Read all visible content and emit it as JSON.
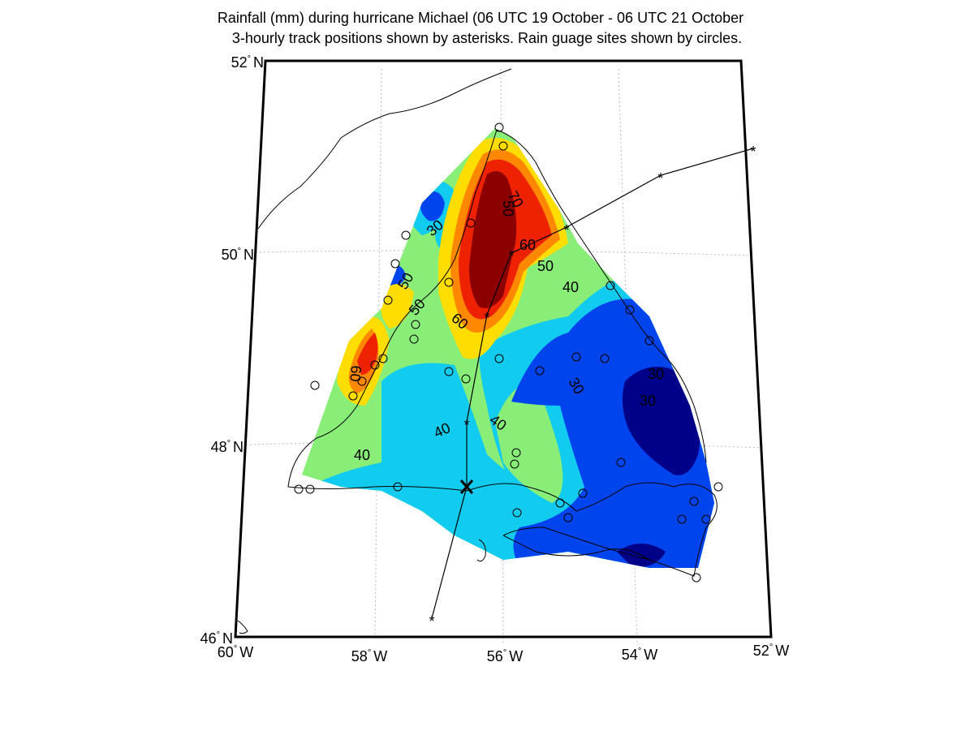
{
  "title": {
    "line1": "Rainfall (mm) during hurricane Michael (06 UTC 19 October - 06 UTC 21 October",
    "line2": "3-hourly track positions shown by asterisks. Rain guage sites shown by circles."
  },
  "axes": {
    "lat_labels": [
      "52",
      "50",
      "48",
      "46"
    ],
    "lon_labels": [
      "60",
      "58",
      "56",
      "54",
      "52"
    ],
    "lat_suffix": "N",
    "lon_suffix": "W",
    "degree_symbol": "°"
  },
  "contour_labels": [
    "70",
    "60",
    "50",
    "40",
    "30",
    "30",
    "50",
    "50",
    "60",
    "60",
    "50",
    "40",
    "40",
    "40",
    "30",
    "30"
  ],
  "colors": {
    "darkred": "#8c0000",
    "red": "#ee2200",
    "orange": "#ff8800",
    "yellow": "#ffdd00",
    "green": "#88ee77",
    "cyan": "#11ccee",
    "blue": "#0044ee",
    "darkblue": "#000088",
    "frame": "#000000",
    "grid": "#bbbbbb"
  }
}
